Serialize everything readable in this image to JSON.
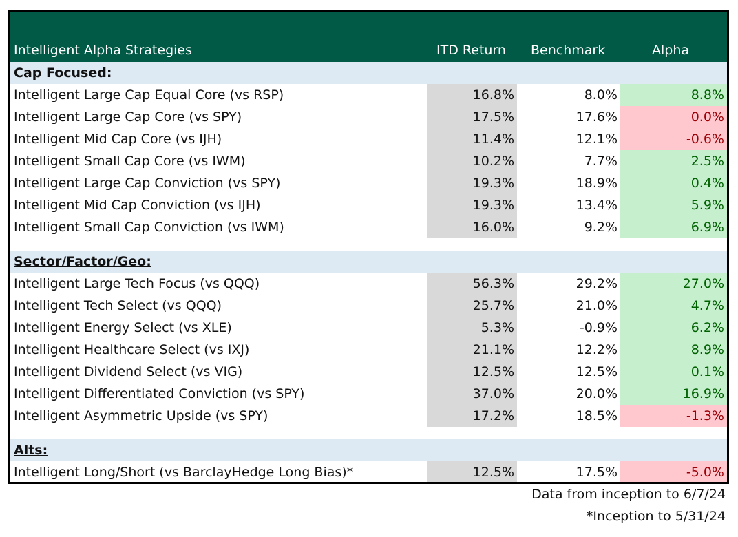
{
  "header": {
    "col_strategy": "Intelligent Alpha Strategies",
    "col_itd": "ITD Return",
    "col_benchmark": "Benchmark",
    "col_alpha": "Alpha"
  },
  "sections": [
    {
      "title": "Cap Focused:",
      "rows": [
        {
          "name": "Intelligent Large Cap Equal Core (vs RSP)",
          "itd": "16.8%",
          "benchmark": "8.0%",
          "alpha": "8.8%",
          "sign": "pos"
        },
        {
          "name": "Intelligent Large Cap Core (vs SPY)",
          "itd": "17.5%",
          "benchmark": "17.6%",
          "alpha": "0.0%",
          "sign": "neg"
        },
        {
          "name": "Intelligent Mid Cap Core (vs IJH)",
          "itd": "11.4%",
          "benchmark": "12.1%",
          "alpha": "-0.6%",
          "sign": "neg"
        },
        {
          "name": "Intelligent Small Cap Core (vs IWM)",
          "itd": "10.2%",
          "benchmark": "7.7%",
          "alpha": "2.5%",
          "sign": "pos"
        },
        {
          "name": "Intelligent Large Cap Conviction (vs SPY)",
          "itd": "19.3%",
          "benchmark": "18.9%",
          "alpha": "0.4%",
          "sign": "pos"
        },
        {
          "name": "Intelligent Mid Cap Conviction (vs IJH)",
          "itd": "19.3%",
          "benchmark": "13.4%",
          "alpha": "5.9%",
          "sign": "pos"
        },
        {
          "name": "Intelligent Small Cap Conviction (vs IWM)",
          "itd": "16.0%",
          "benchmark": "9.2%",
          "alpha": "6.9%",
          "sign": "pos"
        }
      ]
    },
    {
      "title": "Sector/Factor/Geo:",
      "rows": [
        {
          "name": "Intelligent Large Tech Focus (vs QQQ)",
          "itd": "56.3%",
          "benchmark": "29.2%",
          "alpha": "27.0%",
          "sign": "pos"
        },
        {
          "name": "Intelligent Tech Select (vs QQQ)",
          "itd": "25.7%",
          "benchmark": "21.0%",
          "alpha": "4.7%",
          "sign": "pos"
        },
        {
          "name": "Intelligent Energy Select (vs XLE)",
          "itd": "5.3%",
          "benchmark": "-0.9%",
          "alpha": "6.2%",
          "sign": "pos"
        },
        {
          "name": "Intelligent Healthcare Select (vs IXJ)",
          "itd": "21.1%",
          "benchmark": "12.2%",
          "alpha": "8.9%",
          "sign": "pos"
        },
        {
          "name": "Intelligent Dividend Select (vs VIG)",
          "itd": "12.5%",
          "benchmark": "12.5%",
          "alpha": "0.1%",
          "sign": "pos"
        },
        {
          "name": "Intelligent Differentiated Conviction (vs SPY)",
          "itd": "37.0%",
          "benchmark": "20.0%",
          "alpha": "16.9%",
          "sign": "pos"
        },
        {
          "name": "Intelligent Asymmetric Upside (vs SPY)",
          "itd": "17.2%",
          "benchmark": "18.5%",
          "alpha": "-1.3%",
          "sign": "neg"
        }
      ]
    },
    {
      "title": "Alts:",
      "rows": [
        {
          "name": "Intelligent Long/Short (vs BarclayHedge Long Bias)*",
          "itd": "12.5%",
          "benchmark": "17.5%",
          "alpha": "-5.0%",
          "sign": "neg"
        }
      ]
    }
  ],
  "footnotes": {
    "data_range": "Data from inception to 6/7/24",
    "inception_note": "*Inception to 5/31/24"
  },
  "colors": {
    "header_bg": "#005a46",
    "section_bg": "#dde9f3",
    "itd_bg": "#d9d9d9",
    "positive_bg": "#c6efce",
    "positive_text": "#006100",
    "negative_bg": "#ffc7ce",
    "negative_text": "#9c0006"
  }
}
